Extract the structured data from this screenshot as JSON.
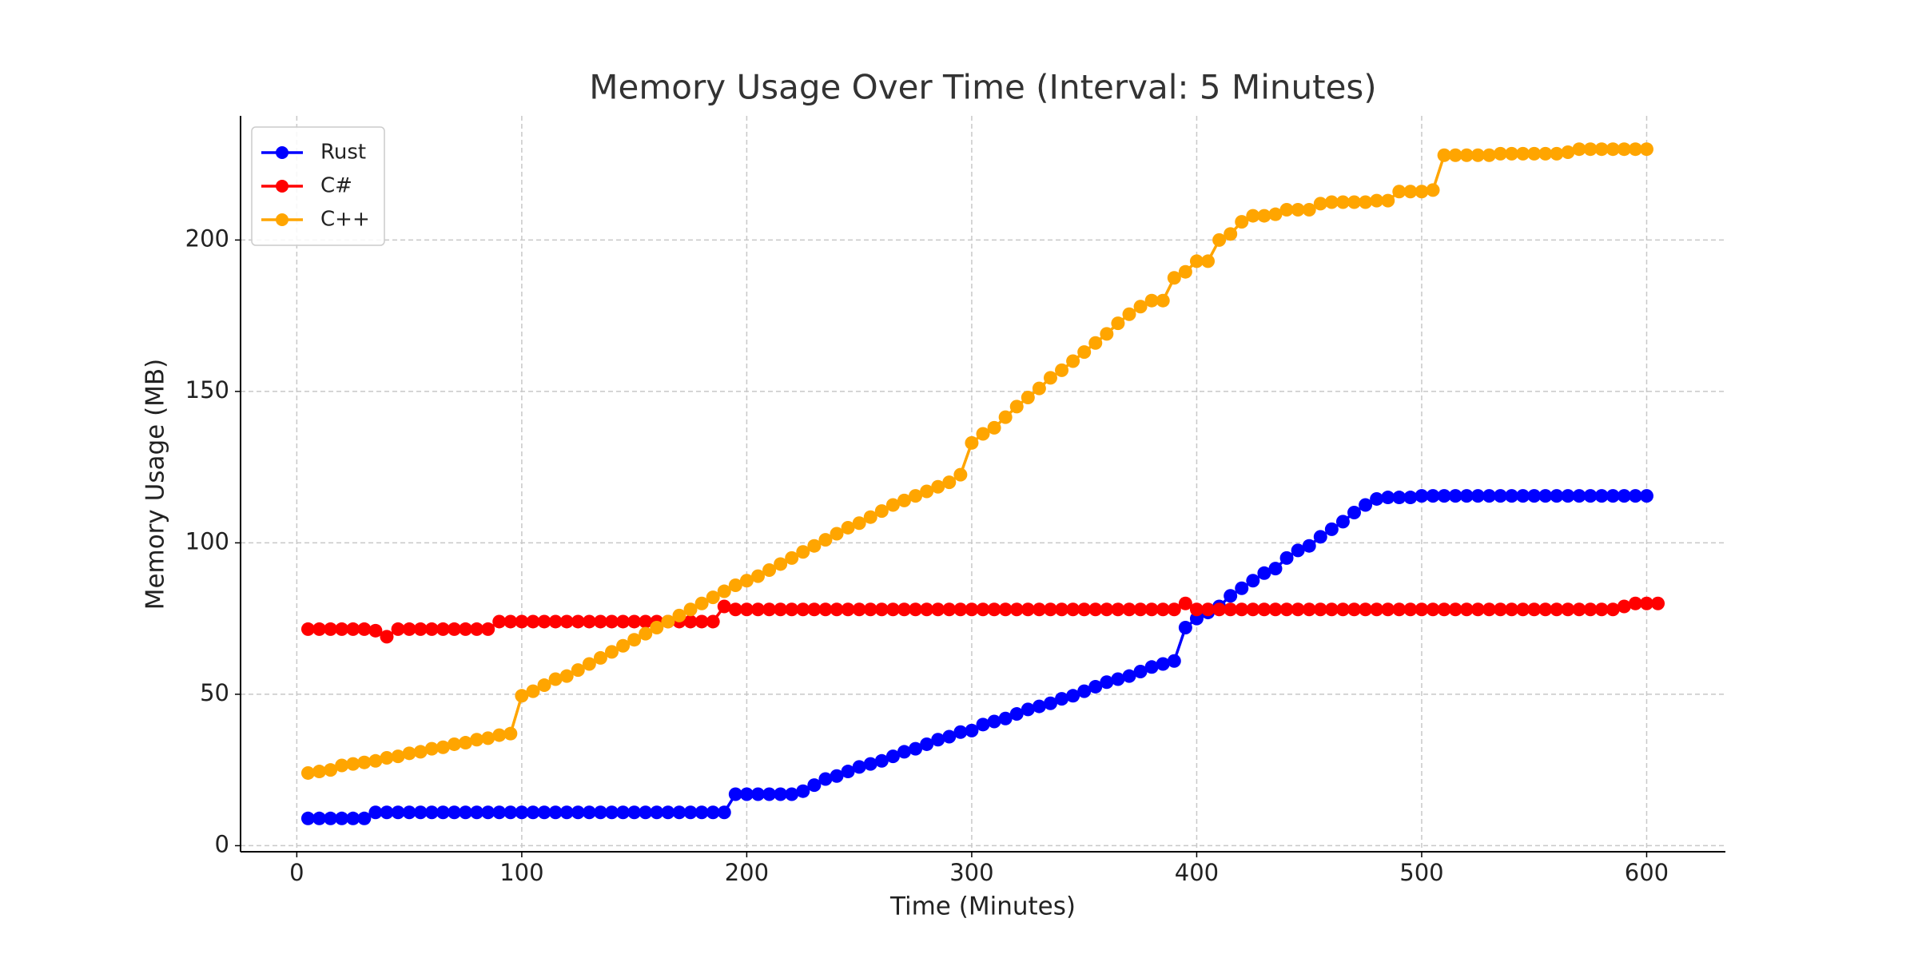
{
  "chart_data": {
    "type": "line",
    "title": "Memory Usage Over Time (Interval: 5 Minutes)",
    "x_label": "Time (Minutes)",
    "y_label": "Memory Usage (MB)",
    "x": [
      5,
      10,
      15,
      20,
      25,
      30,
      35,
      40,
      45,
      50,
      55,
      60,
      65,
      70,
      75,
      80,
      85,
      90,
      95,
      100,
      105,
      110,
      115,
      120,
      125,
      130,
      135,
      140,
      145,
      150,
      155,
      160,
      165,
      170,
      175,
      180,
      185,
      190,
      195,
      200,
      205,
      210,
      215,
      220,
      225,
      230,
      235,
      240,
      245,
      250,
      255,
      260,
      265,
      270,
      275,
      280,
      285,
      290,
      295,
      300,
      305,
      310,
      315,
      320,
      325,
      330,
      335,
      340,
      345,
      350,
      355,
      360,
      365,
      370,
      375,
      380,
      385,
      390,
      395,
      400,
      405,
      410,
      415,
      420,
      425,
      430,
      435,
      440,
      445,
      450,
      455,
      460,
      465,
      470,
      475,
      480,
      485,
      490,
      495,
      500,
      505,
      510,
      515,
      520,
      525,
      530,
      535,
      540,
      545,
      550,
      555,
      560,
      565,
      570,
      575,
      580,
      585,
      590,
      595,
      600,
      605
    ],
    "series": [
      {
        "name": "Rust",
        "color": "#0000ff",
        "values": [
          9,
          9,
          9,
          9,
          9,
          9,
          11,
          11,
          11,
          11,
          11,
          11,
          11,
          11,
          11,
          11,
          11,
          11,
          11,
          11,
          11,
          11,
          11,
          11,
          11,
          11,
          11,
          11,
          11,
          11,
          11,
          11,
          11,
          11,
          11,
          11,
          11,
          11,
          17,
          17,
          17,
          17,
          17,
          17,
          18,
          20,
          22,
          23,
          24.5,
          26,
          27,
          28,
          29.5,
          31,
          32,
          33.5,
          35,
          36,
          37.5,
          38,
          40,
          41,
          42,
          43.5,
          45,
          46,
          47,
          48.5,
          49.5,
          51,
          52.5,
          54,
          55,
          56,
          57.5,
          59,
          60,
          61,
          72,
          75,
          77,
          79,
          82.5,
          85,
          87.5,
          90,
          91.5,
          95,
          97.5,
          99,
          102,
          104.5,
          107,
          110,
          112.5,
          114.5,
          115,
          115,
          115,
          115.5,
          115.5,
          115.5,
          115.5,
          115.5,
          115.5,
          115.5,
          115.5,
          115.5,
          115.5,
          115.5,
          115.5,
          115.5,
          115.5,
          115.5,
          115.5,
          115.5,
          115.5,
          115.5,
          115.5,
          115.5,
          null
        ]
      },
      {
        "name": "C#",
        "color": "#ff0000",
        "values": [
          71.5,
          71.5,
          71.5,
          71.5,
          71.5,
          71.5,
          71,
          69,
          71.5,
          71.5,
          71.5,
          71.5,
          71.5,
          71.5,
          71.5,
          71.5,
          71.5,
          74,
          74,
          74,
          74,
          74,
          74,
          74,
          74,
          74,
          74,
          74,
          74,
          74,
          74,
          74,
          74,
          74,
          74,
          74,
          74,
          79,
          78,
          78,
          78,
          78,
          78,
          78,
          78,
          78,
          78,
          78,
          78,
          78,
          78,
          78,
          78,
          78,
          78,
          78,
          78,
          78,
          78,
          78,
          78,
          78,
          78,
          78,
          78,
          78,
          78,
          78,
          78,
          78,
          78,
          78,
          78,
          78,
          78,
          78,
          78,
          78,
          80,
          78,
          78,
          78,
          78,
          78,
          78,
          78,
          78,
          78,
          78,
          78,
          78,
          78,
          78,
          78,
          78,
          78,
          78,
          78,
          78,
          78,
          78,
          78,
          78,
          78,
          78,
          78,
          78,
          78,
          78,
          78,
          78,
          78,
          78,
          78,
          78,
          78,
          78,
          79,
          80,
          80,
          80
        ]
      },
      {
        "name": "C++",
        "color": "#ffa500",
        "values": [
          24,
          24.5,
          25,
          26.5,
          27,
          27.5,
          28,
          29,
          29.5,
          30.5,
          31,
          32,
          32.5,
          33.5,
          34,
          35,
          35.5,
          36.5,
          37,
          49.5,
          51,
          53,
          55,
          56,
          58,
          60,
          62,
          64,
          66,
          68,
          70,
          72,
          74,
          76,
          78,
          80,
          82,
          84,
          86,
          87.5,
          89,
          91,
          93,
          95,
          97,
          99,
          101,
          103,
          105,
          106.5,
          108.5,
          110.5,
          112.5,
          114,
          115.5,
          117,
          118.5,
          120,
          122.5,
          133,
          136,
          138,
          141.5,
          145,
          148,
          151,
          154.5,
          157,
          160,
          163,
          166,
          169,
          172.5,
          175.5,
          178,
          180,
          180,
          187.5,
          189.5,
          193,
          193,
          200,
          202,
          206,
          208,
          208,
          208.5,
          210,
          210,
          210,
          212,
          212.5,
          212.5,
          212.5,
          212.5,
          213,
          213,
          216,
          216,
          216,
          216.5,
          228,
          228,
          228,
          228,
          228,
          228.5,
          228.5,
          228.5,
          228.5,
          228.5,
          228.5,
          229,
          230,
          230,
          230,
          230,
          230,
          230,
          230,
          null
        ]
      }
    ],
    "xlim": [
      -25,
      635
    ],
    "xticks": [
      0,
      100,
      200,
      300,
      400,
      500,
      600
    ],
    "ylim": [
      -2,
      241
    ],
    "yticks": [
      0,
      50,
      100,
      150,
      200
    ],
    "grid": true,
    "legend": "upper left"
  }
}
